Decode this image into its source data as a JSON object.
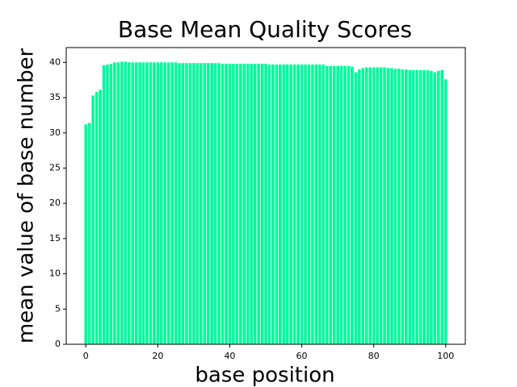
{
  "chart_data": {
    "type": "bar",
    "title": "Base Mean Quality Scores",
    "x_label": "base position",
    "y_label": "mean value of base number",
    "color": "#00fa9a",
    "x": [
      0,
      1,
      2,
      3,
      4,
      5,
      6,
      7,
      8,
      9,
      10,
      11,
      12,
      13,
      14,
      15,
      16,
      17,
      18,
      19,
      20,
      21,
      22,
      23,
      24,
      25,
      26,
      27,
      28,
      29,
      30,
      31,
      32,
      33,
      34,
      35,
      36,
      37,
      38,
      39,
      40,
      41,
      42,
      43,
      44,
      45,
      46,
      47,
      48,
      49,
      50,
      51,
      52,
      53,
      54,
      55,
      56,
      57,
      58,
      59,
      60,
      61,
      62,
      63,
      64,
      65,
      66,
      67,
      68,
      69,
      70,
      71,
      72,
      73,
      74,
      75,
      76,
      77,
      78,
      79,
      80,
      81,
      82,
      83,
      84,
      85,
      86,
      87,
      88,
      89,
      90,
      91,
      92,
      93,
      94,
      95,
      96,
      97,
      98,
      99,
      100
    ],
    "values": [
      31.2,
      31.4,
      35.3,
      35.8,
      36.1,
      39.6,
      39.7,
      39.8,
      40.0,
      40.0,
      40.1,
      40.1,
      40.0,
      40.0,
      40.0,
      40.0,
      40.0,
      40.0,
      40.0,
      40.0,
      40.0,
      40.0,
      40.0,
      40.0,
      40.0,
      40.0,
      39.9,
      39.9,
      39.9,
      39.9,
      39.9,
      39.9,
      39.9,
      39.9,
      39.9,
      39.9,
      39.9,
      39.9,
      39.8,
      39.8,
      39.8,
      39.8,
      39.8,
      39.8,
      39.8,
      39.8,
      39.8,
      39.8,
      39.8,
      39.8,
      39.8,
      39.7,
      39.7,
      39.7,
      39.7,
      39.7,
      39.7,
      39.7,
      39.7,
      39.7,
      39.7,
      39.7,
      39.7,
      39.7,
      39.7,
      39.7,
      39.7,
      39.5,
      39.5,
      39.5,
      39.5,
      39.5,
      39.5,
      39.5,
      39.4,
      38.6,
      39.0,
      39.2,
      39.3,
      39.3,
      39.3,
      39.3,
      39.3,
      39.3,
      39.2,
      39.2,
      39.1,
      39.1,
      39.0,
      39.0,
      38.9,
      38.9,
      38.9,
      38.9,
      38.9,
      38.9,
      38.8,
      38.6,
      38.8,
      38.9,
      37.6
    ],
    "xlim": [
      -5.44,
      105.44
    ],
    "xticks": [
      0,
      20,
      40,
      60,
      80,
      100
    ],
    "ylim": [
      0,
      42.1
    ],
    "yticks": [
      0,
      5,
      10,
      15,
      20,
      25,
      30,
      35,
      40
    ],
    "bar_width": 0.8
  }
}
